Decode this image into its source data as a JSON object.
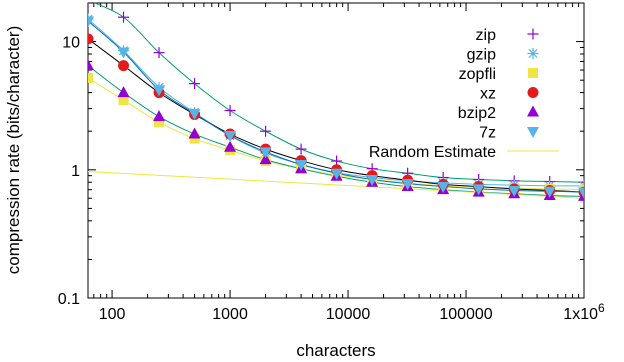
{
  "chart_data": {
    "type": "scatter",
    "x_scale": "log",
    "y_scale": "log",
    "xlim": [
      62.5,
      1000000
    ],
    "ylim": [
      0.1,
      20
    ],
    "xlabel": "characters",
    "ylabel": "compression rate (bits/character)",
    "x_ticks": [
      {
        "value": 100,
        "label": "100"
      },
      {
        "value": 1000,
        "label": "1000"
      },
      {
        "value": 10000,
        "label": "10000"
      },
      {
        "value": 100000,
        "label": "100000"
      },
      {
        "value": 1000000,
        "label": "1x10",
        "sup": "6"
      }
    ],
    "y_ticks": [
      {
        "value": 0.1,
        "label": "0.1"
      },
      {
        "value": 1,
        "label": "1"
      },
      {
        "value": 10,
        "label": "10"
      }
    ],
    "legend_position": "top-right",
    "x": [
      62.5,
      125,
      250,
      500,
      1000,
      2000,
      4000,
      8000,
      16000,
      32000,
      64000,
      128000,
      256000,
      512000,
      1000000
    ],
    "series": [
      {
        "name": "zip",
        "marker": "plus",
        "color": "#9400d3",
        "curve_color": "#009e73",
        "values": [
          21,
          15.5,
          8.2,
          4.7,
          2.9,
          2.0,
          1.45,
          1.17,
          1.02,
          0.94,
          0.87,
          0.84,
          0.82,
          0.81,
          0.8
        ]
      },
      {
        "name": "gzip",
        "marker": "star",
        "color": "#56b4e9",
        "curve_color": "#56b4e9",
        "values": [
          15,
          8.5,
          4.4,
          2.8,
          1.85,
          1.35,
          1.1,
          0.95,
          0.87,
          0.82,
          0.79,
          0.77,
          0.76,
          0.75,
          0.75
        ]
      },
      {
        "name": "zopfli",
        "marker": "square",
        "color": "#f0e442",
        "curve_color": "#f0e442",
        "values": [
          5.2,
          3.5,
          2.35,
          1.75,
          1.42,
          1.17,
          1.02,
          0.91,
          0.84,
          0.79,
          0.75,
          0.73,
          0.72,
          0.71,
          0.7
        ]
      },
      {
        "name": "xz",
        "marker": "circle",
        "color": "#e41a1c",
        "curve_color": "#000000",
        "values": [
          10.5,
          6.5,
          4.0,
          2.7,
          1.9,
          1.45,
          1.18,
          1.0,
          0.9,
          0.83,
          0.77,
          0.74,
          0.71,
          0.69,
          0.67
        ]
      },
      {
        "name": "bzip2",
        "marker": "triangle-up",
        "color": "#9400d3",
        "curve_color": "#009e73",
        "values": [
          6.5,
          4.0,
          2.6,
          1.9,
          1.5,
          1.2,
          1.02,
          0.89,
          0.8,
          0.74,
          0.7,
          0.67,
          0.65,
          0.63,
          0.62
        ]
      },
      {
        "name": "7z",
        "marker": "triangle-down",
        "color": "#56b4e9",
        "curve_color": "#0072b2",
        "values": [
          14.5,
          8.3,
          4.2,
          2.75,
          1.85,
          1.38,
          1.1,
          0.94,
          0.84,
          0.78,
          0.74,
          0.71,
          0.69,
          0.68,
          0.67
        ]
      },
      {
        "name": "Random Estimate",
        "marker": "line",
        "color": "#f0e442",
        "x": [
          62.5,
          1000000
        ],
        "values": [
          0.97,
          0.6
        ]
      }
    ]
  }
}
